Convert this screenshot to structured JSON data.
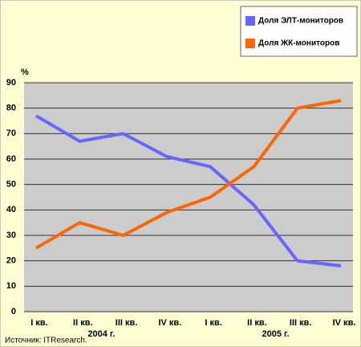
{
  "chart_data": {
    "type": "line",
    "y_label": "%",
    "categories": [
      "I кв.",
      "II кв.",
      "III кв.",
      "IV кв.",
      "I кв.",
      "II кв.",
      "III кв.",
      "IV кв."
    ],
    "groups": [
      "2004 г.",
      "2005 г."
    ],
    "series": [
      {
        "name": "Доля ЭЛТ-мониторов",
        "color": "#6666ff",
        "values": [
          77,
          67,
          70,
          61,
          57,
          42,
          20,
          18
        ]
      },
      {
        "name": "Доля ЖК-мониторов",
        "color": "#ff6600",
        "values": [
          25,
          35,
          30,
          39,
          45,
          57,
          80,
          83
        ]
      }
    ],
    "ylim": [
      0,
      90
    ],
    "yticks": [
      0,
      10,
      20,
      30,
      40,
      50,
      60,
      70,
      80,
      90
    ],
    "grid": true,
    "legend": "top-right",
    "source": "Источник: ITResearch."
  }
}
